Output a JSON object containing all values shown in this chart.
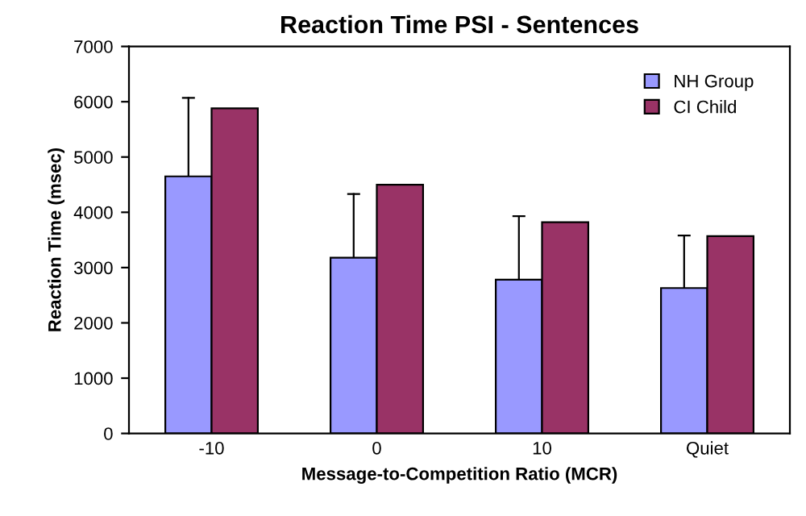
{
  "chart_data": {
    "type": "bar",
    "title": "Reaction Time PSI - Sentences",
    "xlabel": "Message-to-Competition Ratio (MCR)",
    "ylabel": "Reaction Time (msec)",
    "categories": [
      "-10",
      "0",
      "10",
      "Quiet"
    ],
    "series": [
      {
        "name": "NH Group",
        "color": "#9999ff",
        "values": [
          4650,
          3180,
          2780,
          2630
        ],
        "errors": [
          [
            4650,
            6070
          ],
          [
            3180,
            4330
          ],
          [
            2780,
            3930
          ],
          [
            2630,
            3580
          ]
        ]
      },
      {
        "name": "CI Child",
        "color": "#993366",
        "values": [
          5880,
          4500,
          3820,
          3570
        ]
      }
    ],
    "ylim": [
      0,
      7000
    ],
    "yticks": [
      0,
      1000,
      2000,
      3000,
      4000,
      5000,
      6000,
      7000
    ],
    "grid": false,
    "legend": "top right"
  }
}
